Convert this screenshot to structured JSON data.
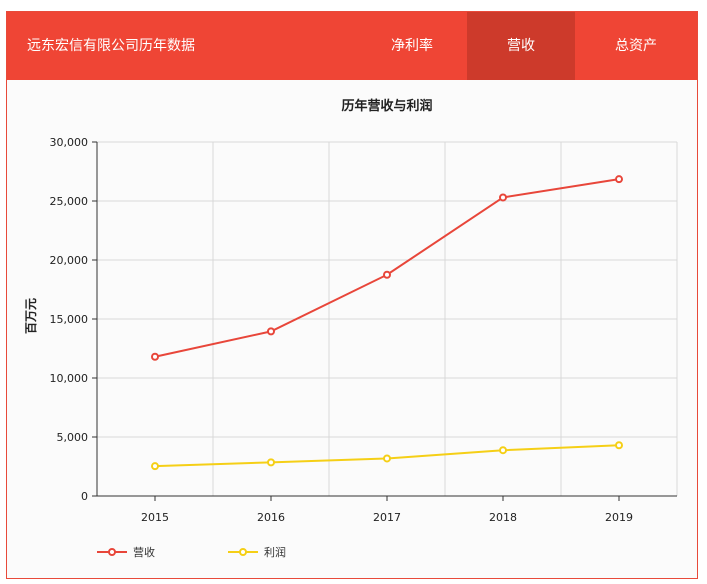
{
  "header": {
    "title": "远东宏信有限公司历年数据",
    "tabs": [
      {
        "label": "净利率",
        "active": false
      },
      {
        "label": "营收",
        "active": true
      },
      {
        "label": "总资产",
        "active": false
      }
    ]
  },
  "colors": {
    "header_bg": "#ef4535",
    "active_tab_bg": "#cd3a2b",
    "series_revenue": "#e8463a",
    "series_profit": "#f5cf16"
  },
  "chart_data": {
    "type": "line",
    "title": "历年营收与利润",
    "ylabel": "百万元",
    "xlabel": "",
    "categories": [
      "2015",
      "2016",
      "2017",
      "2018",
      "2019"
    ],
    "ylim": [
      0,
      30000
    ],
    "yticks": [
      "0",
      "5,000",
      "10,000",
      "15,000",
      "20,000",
      "25,000",
      "30,000"
    ],
    "grid": true,
    "legend_position": "bottom-left",
    "series": [
      {
        "name": "营收",
        "values": [
          11800,
          13950,
          18750,
          25300,
          26850
        ]
      },
      {
        "name": "利润",
        "values": [
          2530,
          2850,
          3180,
          3880,
          4300
        ]
      }
    ]
  }
}
